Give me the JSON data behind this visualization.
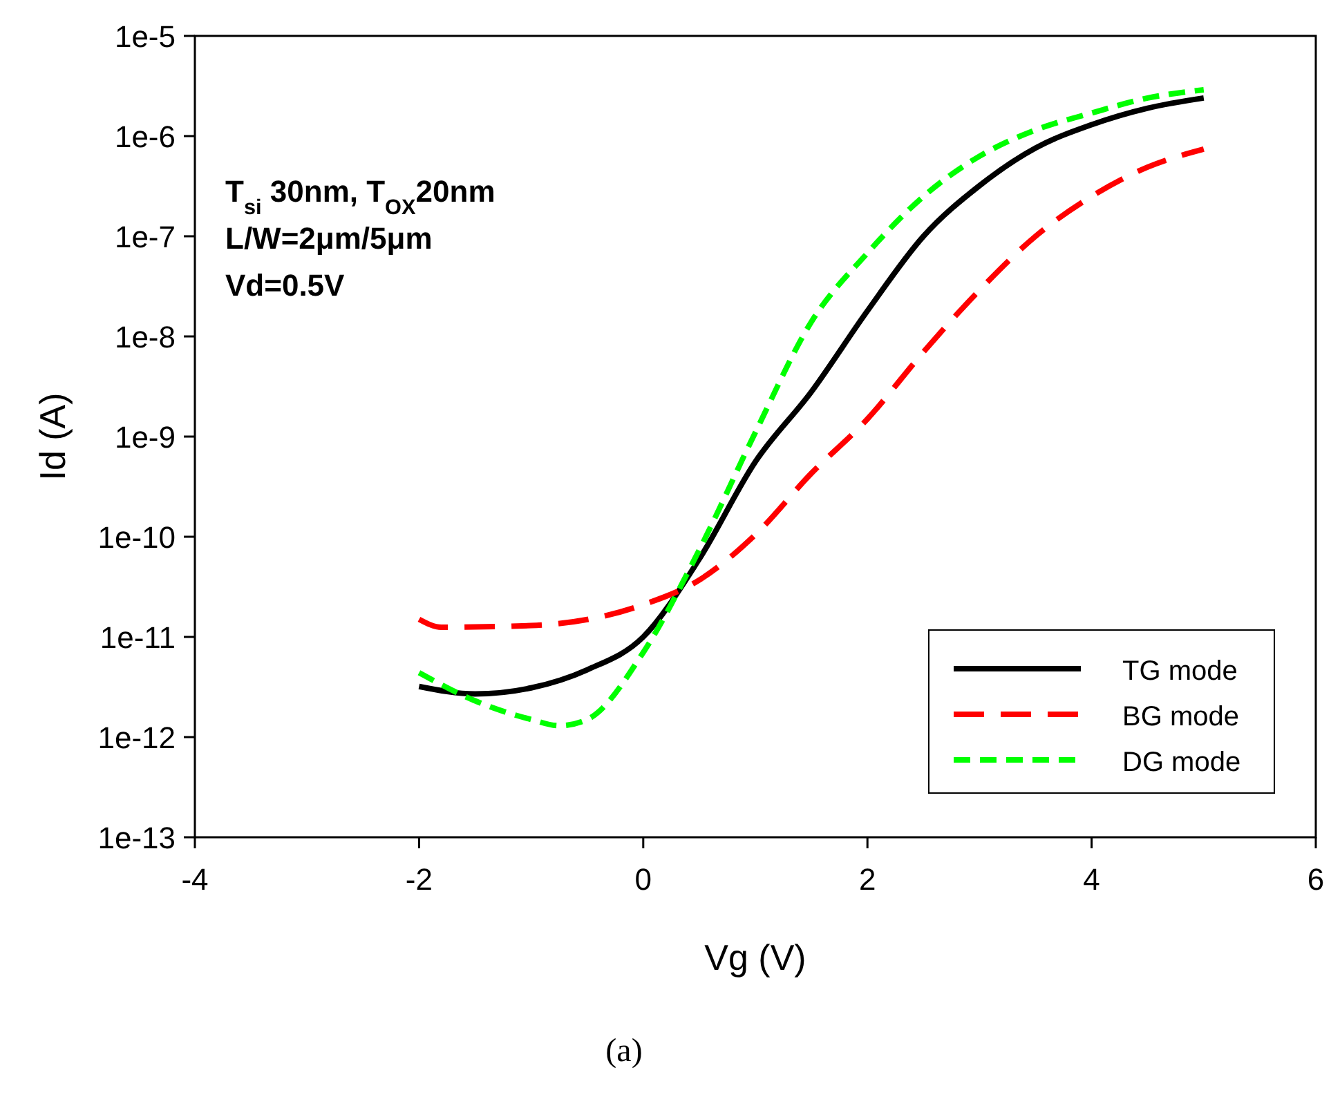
{
  "chart_data": {
    "type": "line",
    "xlabel": "Vg (V)",
    "ylabel": "Id (A)",
    "log": "y",
    "grid": false,
    "legend": "bottom right",
    "xlim": [
      -4,
      6
    ],
    "xticks": [
      -4,
      -2,
      0,
      2,
      4,
      6
    ],
    "ylim": [
      1e-13,
      1e-05
    ],
    "yticks": [
      {
        "value": 1e-13,
        "label": "1e-13"
      },
      {
        "value": 1e-12,
        "label": "1e-12"
      },
      {
        "value": 1e-11,
        "label": "1e-11"
      },
      {
        "value": 1e-10,
        "label": "1e-10"
      },
      {
        "value": 1e-09,
        "label": "1e-9"
      },
      {
        "value": 1e-08,
        "label": "1e-8"
      },
      {
        "value": 1e-07,
        "label": "1e-7"
      },
      {
        "value": 1e-06,
        "label": "1e-6"
      },
      {
        "value": 1e-05,
        "label": "1e-5"
      }
    ],
    "annotations": [
      "T$_{si}$ 30nm, T$_{OX}$20nm",
      "L/W=2μm/5μm",
      "Vd=0.5V",
      "(a)"
    ],
    "series": [
      {
        "name": "TG mode",
        "color": "#000000",
        "line_style": "solid",
        "x": [
          -2,
          -1.5,
          -1,
          -0.5,
          0,
          0.5,
          1,
          1.5,
          2,
          2.5,
          3,
          3.5,
          4,
          4.5,
          5
        ],
        "values": [
          3.2e-12,
          2.7e-12,
          3.1e-12,
          4.7e-12,
          1e-11,
          6e-11,
          5.6e-10,
          2.8e-09,
          1.8e-08,
          1e-07,
          3.2e-07,
          7.6e-07,
          1.3e-06,
          1.9e-06,
          2.4e-06
        ]
      },
      {
        "name": "BG mode",
        "color": "#ff0000",
        "line_style": "dashed",
        "x": [
          -2,
          -1.8,
          -1,
          0,
          0.5,
          1,
          1.5,
          2,
          2.5,
          3,
          3.5,
          4,
          4.5,
          5
        ],
        "values": [
          1.5e-11,
          1.25e-11,
          1.3e-11,
          2.1e-11,
          3.7e-11,
          1.05e-10,
          4.3e-10,
          1.5e-09,
          7e-09,
          2.9e-08,
          1e-07,
          2.5e-07,
          4.9e-07,
          7.4e-07
        ]
      },
      {
        "name": "DG mode",
        "color": "#00ff00",
        "line_style": "dashed",
        "x": [
          -2,
          -1.5,
          -1,
          -0.75,
          -0.5,
          0,
          0.5,
          1,
          1.5,
          2,
          2.5,
          3,
          3.5,
          4,
          4.5,
          5
        ],
        "values": [
          4.4e-12,
          2.3e-12,
          1.5e-12,
          1.3e-12,
          1.5e-12,
          7e-12,
          7.4e-11,
          1.1e-09,
          1.4e-08,
          6.8e-08,
          2.5e-07,
          6.3e-07,
          1.15e-06,
          1.7e-06,
          2.4e-06,
          2.9e-06
        ]
      }
    ]
  }
}
